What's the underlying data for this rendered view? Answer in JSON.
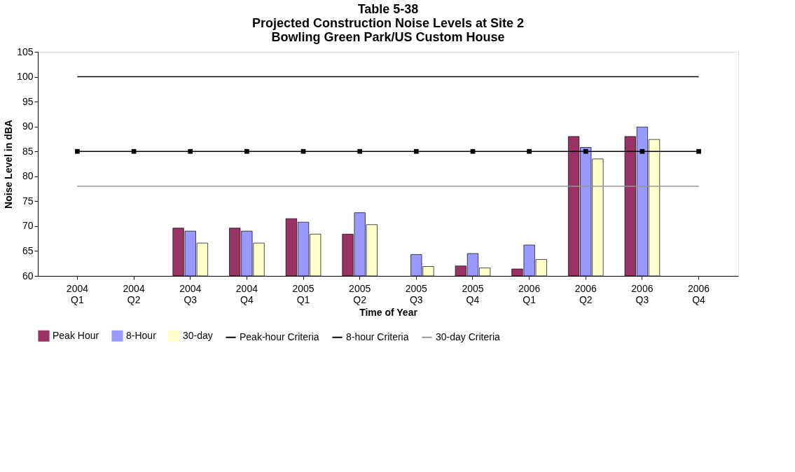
{
  "chart_data": {
    "type": "bar",
    "title": "Table 5-38\nProjected Construction Noise Levels at Site 2\nBowling Green Park/US Custom House",
    "xlabel": "Time of Year",
    "ylabel": "Noise Level in dBA",
    "categories": [
      "2004 Q1",
      "2004 Q2",
      "2004 Q3",
      "2004 Q4",
      "2005 Q1",
      "2005 Q2",
      "2005 Q3",
      "2005 Q4",
      "2006 Q1",
      "2006 Q2",
      "2006 Q3",
      "2006 Q4"
    ],
    "series": [
      {
        "name": "Peak Hour",
        "color": "#993366",
        "values": [
          null,
          null,
          69.6,
          69.6,
          71.5,
          68.4,
          null,
          62.0,
          61.4,
          88.0,
          88.0,
          null
        ]
      },
      {
        "name": "8-Hour",
        "color": "#9999ff",
        "values": [
          null,
          null,
          69.0,
          69.0,
          70.8,
          72.7,
          64.3,
          64.5,
          66.2,
          85.8,
          89.9,
          null
        ]
      },
      {
        "name": "30-day",
        "color": "#ffffcc",
        "values": [
          null,
          null,
          66.6,
          66.6,
          68.4,
          70.3,
          61.9,
          61.6,
          63.3,
          83.5,
          87.4,
          null
        ]
      },
      {
        "name": "Peak-hour Criteria",
        "type": "line",
        "color": "#000000",
        "marker": "none",
        "values": [
          100,
          100,
          100,
          100,
          100,
          100,
          100,
          100,
          100,
          100,
          100,
          100
        ]
      },
      {
        "name": "8-hour Criteria",
        "type": "line",
        "color": "#000000",
        "marker": "square",
        "values": [
          85,
          85,
          85,
          85,
          85,
          85,
          85,
          85,
          85,
          85,
          85,
          85
        ]
      },
      {
        "name": "30-day Criteria",
        "type": "line",
        "color": "#969696",
        "marker": "none",
        "values": [
          78,
          78,
          78,
          78,
          78,
          78,
          78,
          78,
          78,
          78,
          78,
          78
        ]
      }
    ],
    "ylim": [
      60,
      105
    ],
    "yticks": [
      60,
      65,
      70,
      75,
      80,
      85,
      90,
      95,
      100,
      105
    ],
    "grid": false,
    "legend": "bottom"
  }
}
